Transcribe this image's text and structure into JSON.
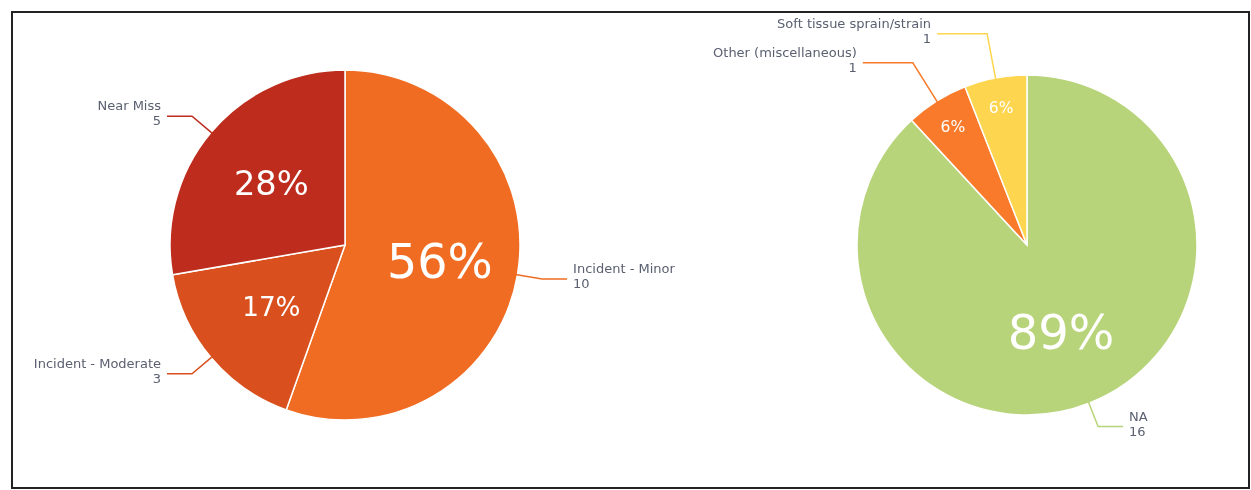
{
  "chart_data": [
    {
      "type": "pie",
      "categories": [
        "Incident - Minor",
        "Incident - Moderate",
        "Near Miss"
      ],
      "values": [
        56,
        17,
        28
      ],
      "value_labels": [
        "56%",
        "17%",
        "28%"
      ],
      "colors": [
        "#f06c22",
        "#d9501e",
        "#bd2c1c"
      ],
      "annotations": [
        {
          "text": "10",
          "x": "Incident - Minor"
        },
        {
          "text": "3",
          "x": "Incident - Moderate"
        },
        {
          "text": "5",
          "x": "Near Miss"
        }
      ]
    },
    {
      "type": "pie",
      "categories": [
        "NA",
        "Other (miscellaneous)",
        "Soft tissue sprain/strain"
      ],
      "values": [
        89,
        6,
        6
      ],
      "value_labels": [
        "89%",
        "6%",
        "6%"
      ],
      "colors": [
        "#b8d47a",
        "#f97a2a",
        "#fdd54e"
      ],
      "annotations": [
        {
          "text": "16",
          "x": "NA"
        },
        {
          "text": "1",
          "x": "Other (miscellaneous)"
        },
        {
          "text": "1",
          "x": "Soft tissue sprain/strain"
        }
      ]
    }
  ]
}
